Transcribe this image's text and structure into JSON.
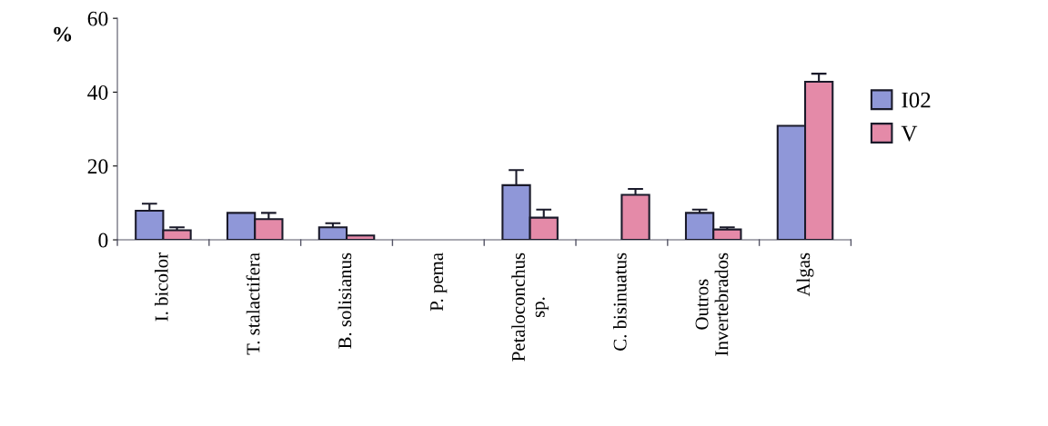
{
  "chart_data": {
    "type": "bar",
    "ylabel": "%",
    "categories": [
      "I. bicolor",
      "T. stalactifera",
      "B. solisianus",
      "P. pema",
      "Petaloconchus\nsp.",
      "C. bisinuatus",
      "Outros\nInvertebrados",
      "Algas"
    ],
    "series": [
      {
        "name": "I02",
        "color": "#8f97d8",
        "values": [
          7.9,
          7.3,
          3.4,
          0,
          14.8,
          0,
          7.3,
          30.9
        ],
        "errors": [
          1.9,
          null,
          1.1,
          null,
          4.1,
          null,
          0.9,
          null
        ]
      },
      {
        "name": "V",
        "color": "#e48aa8",
        "values": [
          2.6,
          5.6,
          1.2,
          0,
          6.0,
          12.2,
          2.8,
          42.8
        ],
        "errors": [
          0.8,
          1.7,
          null,
          null,
          2.2,
          1.6,
          0.6,
          2.2
        ]
      }
    ],
    "ylim": [
      0,
      60
    ],
    "yticks": [
      0,
      20,
      40,
      60
    ],
    "grid": false,
    "legend": "right"
  }
}
